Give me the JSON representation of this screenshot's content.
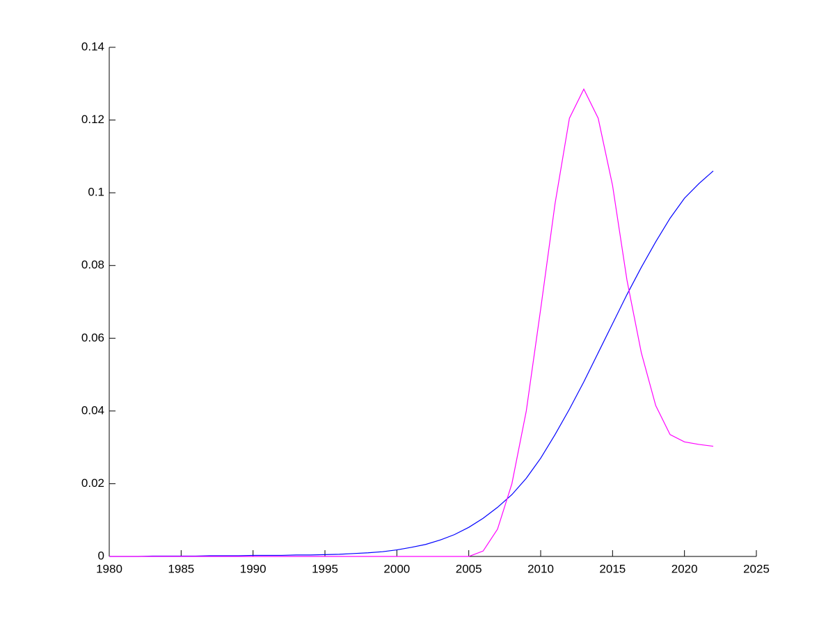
{
  "chart_data": {
    "type": "line",
    "x": [
      1980,
      1981,
      1982,
      1983,
      1984,
      1985,
      1986,
      1987,
      1988,
      1989,
      1990,
      1991,
      1992,
      1993,
      1994,
      1995,
      1996,
      1997,
      1998,
      1999,
      2000,
      2001,
      2002,
      2003,
      2004,
      2005,
      2006,
      2007,
      2008,
      2009,
      2010,
      2011,
      2012,
      2013,
      2014,
      2015,
      2016,
      2017,
      2018,
      2019,
      2020,
      2021,
      2022
    ],
    "series": [
      {
        "color": "#0000ff",
        "values": [
          0,
          0,
          0,
          0.0001,
          0.0001,
          0.0001,
          0.0001,
          0.0002,
          0.0002,
          0.0002,
          0.0003,
          0.0003,
          0.0003,
          0.0004,
          0.0004,
          0.0005,
          0.0006,
          0.0008,
          0.001,
          0.0013,
          0.0018,
          0.0025,
          0.0033,
          0.0045,
          0.006,
          0.008,
          0.0105,
          0.0135,
          0.017,
          0.0215,
          0.027,
          0.0335,
          0.0405,
          0.048,
          0.056,
          0.064,
          0.072,
          0.0795,
          0.0865,
          0.093,
          0.0985,
          0.1025,
          0.106
        ]
      },
      {
        "color": "#ff00ff",
        "values": [
          0,
          0,
          0,
          0,
          0,
          0,
          0,
          0,
          0,
          0,
          0,
          0,
          0,
          0,
          0,
          0,
          0,
          0,
          0,
          0,
          0,
          0,
          0,
          0,
          0,
          0,
          0.0015,
          0.0075,
          0.02,
          0.04,
          0.068,
          0.097,
          0.1205,
          0.1285,
          0.1205,
          0.102,
          0.076,
          0.056,
          0.0415,
          0.0335,
          0.0315,
          0.0308,
          0.0303
        ]
      }
    ],
    "xlim": [
      1980,
      2025
    ],
    "xticks": [
      1980,
      1985,
      1990,
      1995,
      2000,
      2005,
      2010,
      2015,
      2020,
      2025
    ],
    "ylim": [
      0,
      0.14
    ],
    "yticks": [
      0,
      0.02,
      0.04,
      0.06,
      0.08,
      0.1,
      0.12,
      0.14
    ]
  }
}
